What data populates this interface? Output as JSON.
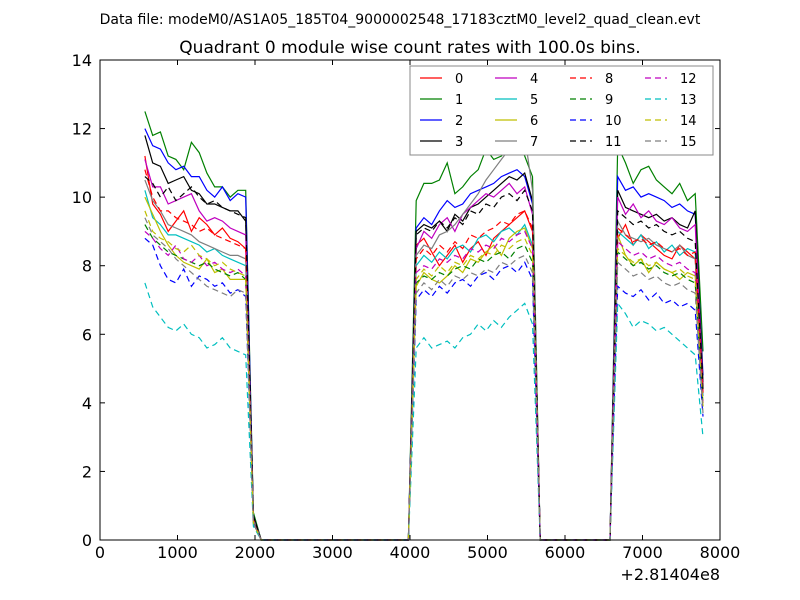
{
  "figure": {
    "suptitle": "Data file: modeM0/AS1A05_185T04_9000002548_17183cztM0_level2_quad_clean.evt",
    "title": "Quadrant 0 module wise count rates with 100.0s bins.",
    "x_offset_label": "+2.81404e8"
  },
  "chart_data": {
    "type": "line",
    "title": "Quadrant 0 module wise count rates with 100.0s bins.",
    "xlabel": "",
    "ylabel": "",
    "xlim": [
      0,
      8000
    ],
    "ylim": [
      0,
      14
    ],
    "x_offset": 281404000,
    "x_ticks": [
      0,
      1000,
      2000,
      3000,
      4000,
      5000,
      6000,
      7000,
      8000
    ],
    "y_ticks": [
      0,
      2,
      4,
      6,
      8,
      10,
      12,
      14
    ],
    "grid": false,
    "legend_position": "top-right",
    "x": [
      580,
      680,
      780,
      880,
      980,
      1080,
      1180,
      1280,
      1380,
      1480,
      1580,
      1680,
      1780,
      1880,
      1980,
      2080,
      2180,
      2280,
      2380,
      2480,
      2580,
      2680,
      2780,
      2880,
      2980,
      3080,
      3180,
      3280,
      3380,
      3480,
      3580,
      3680,
      3780,
      3880,
      3980,
      4080,
      4180,
      4280,
      4380,
      4480,
      4580,
      4680,
      4780,
      4880,
      4980,
      5080,
      5180,
      5280,
      5380,
      5480,
      5580,
      5680,
      5780,
      5880,
      5980,
      6080,
      6180,
      6280,
      6380,
      6480,
      6580,
      6680,
      6780,
      6880,
      6980,
      7080,
      7180,
      7280,
      7380,
      7480,
      7580,
      7680,
      7780
    ],
    "series": [
      {
        "name": "0",
        "color": "#ff0000",
        "dash": "solid",
        "seg1": [
          11.2,
          9.8,
          9.5,
          9.0,
          9.3,
          9.6,
          9.0,
          9.4,
          9.2,
          8.9,
          9.1,
          8.8,
          8.7,
          8.5,
          0.6
        ],
        "seg2": [
          8.6,
          8.8,
          8.4,
          8.0,
          8.3,
          8.6,
          8.1,
          8.5,
          8.7,
          8.3,
          8.8,
          9.0,
          9.2,
          9.4,
          9.6,
          9.0
        ],
        "seg3": [
          8.8,
          9.2,
          8.6,
          8.9,
          8.7,
          8.5,
          8.3,
          8.2,
          8.6,
          8.4,
          8.2,
          4.5
        ]
      },
      {
        "name": "1",
        "color": "#008000",
        "dash": "solid",
        "seg1": [
          12.5,
          11.8,
          11.9,
          11.2,
          11.1,
          10.8,
          11.6,
          11.3,
          10.7,
          10.3,
          10.3,
          10.0,
          10.2,
          10.2,
          0.8
        ],
        "seg2": [
          9.9,
          10.4,
          10.4,
          10.5,
          11.0,
          10.1,
          10.3,
          10.6,
          10.8,
          11.4,
          11.1,
          11.2,
          11.5,
          11.6,
          11.2,
          10.6
        ],
        "seg3": [
          11.5,
          11.0,
          10.4,
          10.8,
          10.9,
          10.5,
          10.3,
          10.1,
          10.4,
          9.9,
          10.1,
          5.5
        ]
      },
      {
        "name": "2",
        "color": "#0000ff",
        "dash": "solid",
        "seg1": [
          12.0,
          11.5,
          11.4,
          11.0,
          10.8,
          10.9,
          10.6,
          10.6,
          10.2,
          10.0,
          10.3,
          9.9,
          10.1,
          10.0,
          0.7
        ],
        "seg2": [
          9.1,
          9.4,
          9.2,
          9.6,
          9.9,
          9.7,
          9.8,
          10.1,
          10.2,
          10.3,
          10.4,
          10.6,
          10.7,
          10.8,
          10.6,
          9.8
        ],
        "seg3": [
          10.6,
          10.2,
          10.3,
          10.0,
          10.1,
          10.0,
          9.9,
          9.7,
          9.8,
          9.6,
          9.5,
          4.8
        ]
      },
      {
        "name": "3",
        "color": "#000000",
        "dash": "solid",
        "seg1": [
          11.8,
          11.0,
          10.9,
          10.4,
          10.5,
          10.6,
          10.2,
          10.1,
          9.8,
          9.8,
          9.7,
          9.6,
          9.6,
          9.3,
          0.7
        ],
        "seg2": [
          9.0,
          9.2,
          9.1,
          9.3,
          9.0,
          9.5,
          9.3,
          9.7,
          9.8,
          10.0,
          10.2,
          10.4,
          10.6,
          10.5,
          10.7,
          9.9
        ],
        "seg3": [
          10.2,
          9.7,
          9.6,
          9.5,
          9.4,
          9.5,
          9.3,
          9.4,
          9.2,
          9.1,
          9.6,
          4.6
        ]
      },
      {
        "name": "4",
        "color": "#bf00bf",
        "dash": "solid",
        "seg1": [
          11.1,
          10.3,
          10.3,
          9.8,
          9.9,
          10.0,
          10.1,
          9.6,
          9.3,
          9.4,
          9.3,
          9.1,
          9.0,
          8.9,
          0.6
        ],
        "seg2": [
          8.5,
          9.0,
          8.8,
          9.2,
          9.4,
          9.0,
          9.5,
          9.7,
          9.9,
          10.1,
          10.0,
          10.2,
          10.4,
          10.1,
          10.3,
          9.5
        ],
        "seg3": [
          10.0,
          9.5,
          9.8,
          9.4,
          9.6,
          9.3,
          9.2,
          9.4,
          9.1,
          9.0,
          9.2,
          4.4
        ]
      },
      {
        "name": "5",
        "color": "#00bfbf",
        "dash": "solid",
        "seg1": [
          10.2,
          9.4,
          9.2,
          8.9,
          8.9,
          8.8,
          8.7,
          8.6,
          8.4,
          8.5,
          8.3,
          8.2,
          8.1,
          8.0,
          0.5
        ],
        "seg2": [
          8.0,
          8.3,
          8.1,
          8.4,
          8.2,
          8.5,
          8.6,
          8.4,
          8.8,
          8.9,
          8.7,
          9.0,
          9.1,
          8.9,
          9.2,
          8.6
        ],
        "seg3": [
          9.0,
          8.8,
          8.6,
          8.9,
          8.5,
          8.7,
          8.4,
          8.6,
          8.3,
          8.5,
          8.4,
          4.2
        ]
      },
      {
        "name": "6",
        "color": "#bfbf00",
        "dash": "solid",
        "seg1": [
          10.0,
          9.5,
          9.0,
          8.6,
          8.3,
          8.1,
          8.0,
          7.9,
          8.2,
          7.8,
          7.9,
          7.6,
          7.6,
          7.6,
          0.5
        ],
        "seg2": [
          7.4,
          7.8,
          7.6,
          7.5,
          7.7,
          8.0,
          7.8,
          8.2,
          8.1,
          8.4,
          8.6,
          8.3,
          8.8,
          9.0,
          9.1,
          8.5
        ],
        "seg3": [
          8.9,
          8.3,
          8.0,
          8.2,
          7.8,
          8.1,
          7.9,
          7.8,
          7.6,
          7.8,
          7.7,
          4.0
        ]
      },
      {
        "name": "7",
        "color": "#7f7f7f",
        "dash": "solid",
        "seg1": [
          10.5,
          9.9,
          9.6,
          9.2,
          9.1,
          9.0,
          8.9,
          8.7,
          8.6,
          8.5,
          8.4,
          8.3,
          8.3,
          8.2,
          0.6
        ],
        "seg2": [
          8.3,
          8.6,
          8.5,
          8.9,
          9.0,
          9.2,
          9.5,
          9.8,
          10.1,
          10.5,
          10.8,
          11.1,
          11.4,
          11.6,
          11.8,
          10.2
        ],
        "seg3": [
          9.3,
          8.9,
          8.8,
          8.7,
          8.8,
          8.6,
          8.5,
          8.4,
          8.6,
          8.3,
          8.2,
          4.3
        ]
      },
      {
        "name": "8",
        "color": "#ff0000",
        "dash": "dashed",
        "seg1": [
          10.8,
          10.0,
          9.6,
          9.6,
          9.4,
          9.3,
          9.2,
          9.0,
          9.1,
          8.9,
          8.8,
          8.7,
          8.6,
          8.5,
          0.6
        ],
        "seg2": [
          8.2,
          8.5,
          8.3,
          8.6,
          8.4,
          8.7,
          8.5,
          8.9,
          8.8,
          9.0,
          9.1,
          9.3,
          9.2,
          9.5,
          9.6,
          9.1
        ],
        "seg3": [
          9.1,
          8.9,
          8.7,
          8.8,
          8.6,
          8.7,
          8.5,
          8.4,
          8.5,
          8.3,
          8.4,
          4.3
        ]
      },
      {
        "name": "9",
        "color": "#008000",
        "dash": "dashed",
        "seg1": [
          9.2,
          8.8,
          8.6,
          8.4,
          8.3,
          8.2,
          8.1,
          8.0,
          8.1,
          7.9,
          7.8,
          7.7,
          7.8,
          7.6,
          0.5
        ],
        "seg2": [
          7.5,
          7.7,
          7.6,
          7.8,
          7.7,
          7.9,
          8.0,
          7.9,
          8.2,
          8.1,
          8.3,
          8.4,
          8.2,
          8.5,
          8.6,
          8.1
        ],
        "seg3": [
          8.4,
          8.2,
          8.0,
          8.1,
          7.9,
          8.0,
          7.8,
          7.7,
          7.8,
          7.6,
          7.5,
          3.9
        ]
      },
      {
        "name": "10",
        "color": "#0000ff",
        "dash": "dashed",
        "seg1": [
          8.8,
          8.6,
          8.0,
          7.6,
          7.5,
          7.9,
          7.4,
          7.7,
          7.6,
          7.4,
          7.5,
          7.2,
          7.3,
          7.1,
          0.5
        ],
        "seg2": [
          7.0,
          7.3,
          7.1,
          7.4,
          7.2,
          7.5,
          7.6,
          7.4,
          7.7,
          7.8,
          7.6,
          7.9,
          8.0,
          7.8,
          8.1,
          7.6
        ],
        "seg3": [
          7.4,
          7.2,
          7.1,
          7.3,
          7.0,
          7.2,
          6.9,
          7.0,
          6.8,
          6.9,
          6.7,
          3.6
        ]
      },
      {
        "name": "11",
        "color": "#000000",
        "dash": "dashed",
        "seg1": [
          10.6,
          10.4,
          10.0,
          10.3,
          9.9,
          10.1,
          10.3,
          10.0,
          9.8,
          9.9,
          9.7,
          9.6,
          9.5,
          9.4,
          0.7
        ],
        "seg2": [
          8.9,
          9.1,
          9.0,
          9.3,
          9.1,
          9.4,
          9.2,
          9.6,
          9.5,
          9.8,
          9.7,
          10.0,
          10.1,
          9.9,
          10.2,
          9.6
        ],
        "seg3": [
          9.6,
          9.4,
          9.2,
          9.3,
          9.1,
          9.2,
          9.0,
          8.9,
          9.0,
          8.8,
          8.7,
          4.4
        ]
      },
      {
        "name": "12",
        "color": "#bf00bf",
        "dash": "dashed",
        "seg1": [
          9.0,
          8.8,
          8.5,
          8.3,
          8.6,
          8.2,
          8.1,
          8.3,
          8.0,
          8.1,
          7.9,
          7.8,
          7.9,
          7.7,
          0.5
        ],
        "seg2": [
          7.8,
          8.0,
          7.9,
          8.2,
          8.1,
          8.3,
          8.2,
          8.5,
          8.4,
          8.6,
          8.5,
          8.8,
          8.7,
          8.9,
          9.0,
          8.5
        ],
        "seg3": [
          8.7,
          8.5,
          8.3,
          8.4,
          8.2,
          8.3,
          8.1,
          8.0,
          8.1,
          7.9,
          7.8,
          4.0
        ]
      },
      {
        "name": "13",
        "color": "#00bfbf",
        "dash": "dashed",
        "seg1": [
          7.5,
          6.8,
          6.5,
          6.2,
          6.1,
          6.3,
          6.0,
          5.9,
          5.6,
          5.7,
          5.9,
          5.6,
          5.5,
          5.4,
          0.4
        ],
        "seg2": [
          5.6,
          5.9,
          5.6,
          5.7,
          5.8,
          5.6,
          5.9,
          6.0,
          6.3,
          6.1,
          6.4,
          6.2,
          6.5,
          6.7,
          6.9,
          6.3
        ],
        "seg3": [
          6.9,
          6.6,
          6.2,
          6.4,
          6.3,
          6.1,
          6.2,
          6.0,
          5.8,
          5.6,
          5.4,
          3.0
        ]
      },
      {
        "name": "14",
        "color": "#bfbf00",
        "dash": "dashed",
        "seg1": [
          9.6,
          9.0,
          8.8,
          8.7,
          8.5,
          8.4,
          8.6,
          8.3,
          8.2,
          8.0,
          8.1,
          7.9,
          7.8,
          7.7,
          0.5
        ],
        "seg2": [
          7.6,
          7.9,
          7.7,
          8.0,
          7.8,
          8.1,
          8.0,
          8.3,
          8.2,
          8.4,
          8.3,
          8.6,
          8.5,
          8.7,
          8.8,
          8.3
        ],
        "seg3": [
          8.5,
          8.3,
          8.1,
          8.2,
          8.0,
          8.1,
          7.9,
          7.8,
          7.9,
          7.7,
          7.6,
          3.9
        ]
      },
      {
        "name": "15",
        "color": "#7f7f7f",
        "dash": "dashed",
        "seg1": [
          9.4,
          8.9,
          8.7,
          8.5,
          8.2,
          8.0,
          7.8,
          7.6,
          7.4,
          7.3,
          7.2,
          7.1,
          7.3,
          7.2,
          0.5
        ],
        "seg2": [
          7.2,
          7.5,
          7.3,
          7.6,
          7.4,
          7.7,
          7.6,
          7.8,
          7.7,
          7.9,
          7.8,
          8.1,
          8.0,
          8.2,
          8.3,
          7.8
        ],
        "seg3": [
          8.1,
          7.9,
          7.7,
          7.8,
          7.6,
          7.7,
          7.5,
          7.4,
          7.5,
          7.3,
          7.2,
          3.7
        ]
      }
    ]
  }
}
